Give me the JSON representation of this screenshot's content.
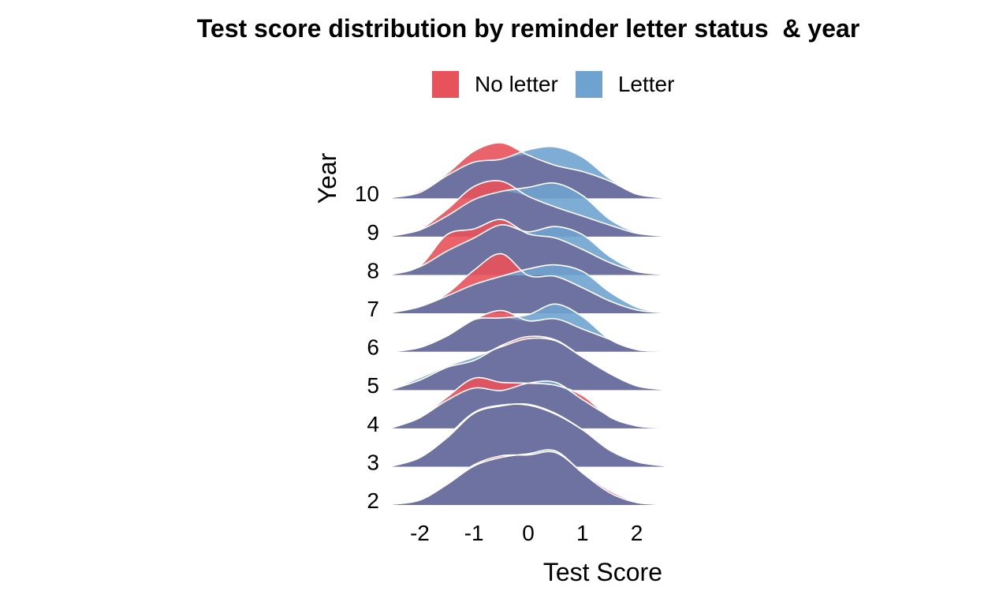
{
  "chart_data": {
    "type": "ridgeline-density",
    "title": "Test score distribution by reminder letter status  & year",
    "xlabel": "Test Score",
    "ylabel": "Year",
    "xlim": [
      -2.5,
      2.5
    ],
    "x_ticks": [
      "-2",
      "-1",
      "0",
      "1",
      "2"
    ],
    "y_categories": [
      "2",
      "3",
      "4",
      "5",
      "6",
      "7",
      "8",
      "9",
      "10"
    ],
    "legend_position": "top",
    "series": [
      {
        "name": "No letter",
        "color": "#e8525a"
      },
      {
        "name": "Letter",
        "color": "#6fa3cf"
      }
    ],
    "overlap_color": "#6d72a0",
    "curve_x": [
      -2.5,
      -2.0,
      -1.5,
      -1.0,
      -0.5,
      0.0,
      0.5,
      1.0,
      1.5,
      2.0,
      2.5
    ],
    "densities": [
      {
        "year": "2",
        "No letter": [
          0.02,
          0.12,
          0.5,
          0.98,
          1.2,
          1.22,
          1.28,
          0.8,
          0.35,
          0.08,
          0.01
        ],
        "Letter": [
          0.02,
          0.12,
          0.5,
          0.95,
          1.16,
          1.25,
          1.32,
          0.78,
          0.3,
          0.06,
          0.01
        ]
      },
      {
        "year": "3",
        "No letter": [
          0.02,
          0.22,
          0.7,
          1.3,
          1.48,
          1.52,
          1.3,
          0.9,
          0.4,
          0.12,
          0.02
        ],
        "Letter": [
          0.02,
          0.22,
          0.74,
          1.32,
          1.5,
          1.5,
          1.28,
          0.9,
          0.42,
          0.12,
          0.02
        ]
      },
      {
        "year": "4",
        "No letter": [
          0.02,
          0.26,
          0.76,
          1.22,
          1.12,
          1.1,
          1.05,
          0.8,
          0.28,
          0.06,
          0.01
        ],
        "Letter": [
          0.02,
          0.26,
          0.68,
          0.98,
          0.92,
          1.1,
          1.12,
          0.7,
          0.3,
          0.06,
          0.01
        ]
      },
      {
        "year": "5",
        "No letter": [
          0.02,
          0.24,
          0.55,
          0.72,
          1.08,
          1.3,
          1.22,
          0.8,
          0.4,
          0.1,
          0.01
        ],
        "Letter": [
          0.02,
          0.3,
          0.58,
          0.8,
          1.05,
          1.25,
          1.2,
          0.8,
          0.42,
          0.1,
          0.01
        ]
      },
      {
        "year": "6",
        "No letter": [
          0.0,
          0.1,
          0.38,
          0.78,
          1.0,
          0.75,
          0.8,
          0.55,
          0.3,
          0.05,
          0.01
        ],
        "Letter": [
          0.0,
          0.1,
          0.38,
          0.78,
          0.82,
          0.9,
          1.16,
          0.85,
          0.3,
          0.05,
          0.01
        ]
      },
      {
        "year": "7",
        "No letter": [
          0.02,
          0.18,
          0.48,
          1.05,
          1.45,
          0.92,
          0.9,
          0.62,
          0.3,
          0.08,
          0.01
        ],
        "Letter": [
          0.02,
          0.16,
          0.42,
          0.7,
          0.9,
          1.08,
          1.18,
          1.02,
          0.52,
          0.15,
          0.01
        ]
      },
      {
        "year": "8",
        "No letter": [
          0.02,
          0.22,
          0.98,
          1.12,
          1.35,
          1.0,
          0.9,
          0.62,
          0.3,
          0.08,
          0.01
        ],
        "Letter": [
          0.02,
          0.2,
          0.58,
          0.9,
          1.22,
          1.05,
          1.18,
          0.98,
          0.45,
          0.1,
          0.01
        ]
      },
      {
        "year": "9",
        "No letter": [
          0.02,
          0.18,
          0.66,
          1.22,
          1.35,
          0.98,
          0.72,
          0.5,
          0.28,
          0.08,
          0.01
        ],
        "Letter": [
          0.02,
          0.16,
          0.5,
          0.9,
          1.1,
          1.2,
          1.3,
          1.0,
          0.42,
          0.1,
          0.01
        ]
      },
      {
        "year": "10",
        "No letter": [
          0.02,
          0.18,
          0.6,
          1.15,
          1.35,
          1.05,
          0.8,
          0.65,
          0.42,
          0.1,
          0.01
        ],
        "Letter": [
          0.02,
          0.14,
          0.55,
          0.88,
          0.95,
          1.18,
          1.25,
          1.0,
          0.48,
          0.12,
          0.01
        ]
      }
    ]
  }
}
